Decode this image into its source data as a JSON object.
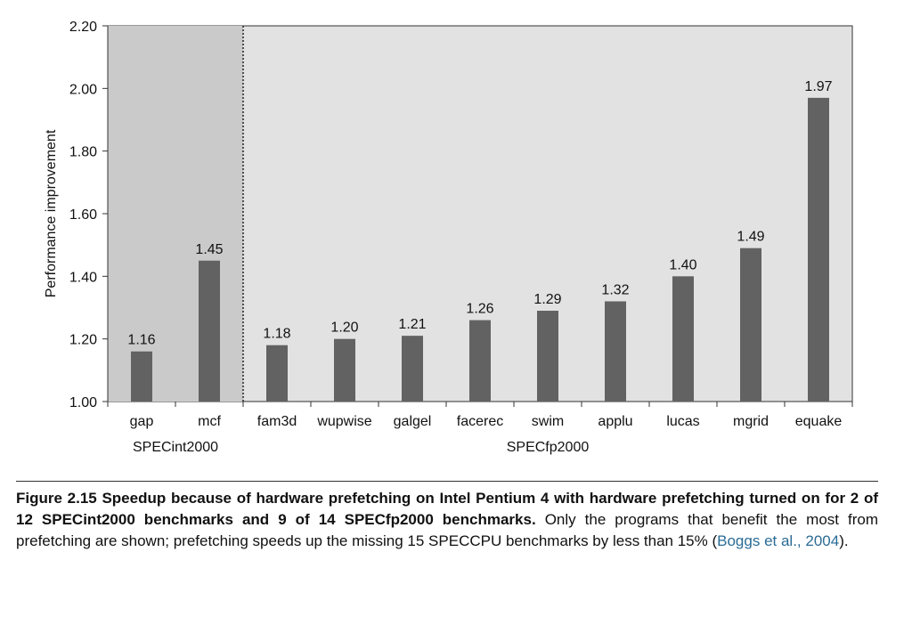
{
  "chart_data": {
    "type": "bar",
    "title": "",
    "xlabel": "",
    "ylabel": "Performance improvement",
    "ylim": [
      1.0,
      2.2
    ],
    "yticks": [
      "1.00",
      "1.20",
      "1.40",
      "1.60",
      "1.80",
      "2.00",
      "2.20"
    ],
    "grid": false,
    "categories": [
      "gap",
      "mcf",
      "fam3d",
      "wupwise",
      "galgel",
      "facerec",
      "swim",
      "applu",
      "lucas",
      "mgrid",
      "equake"
    ],
    "values": [
      1.16,
      1.45,
      1.18,
      1.2,
      1.21,
      1.26,
      1.29,
      1.32,
      1.4,
      1.49,
      1.97
    ],
    "value_labels": [
      "1.16",
      "1.45",
      "1.18",
      "1.20",
      "1.21",
      "1.26",
      "1.29",
      "1.32",
      "1.40",
      "1.49",
      "1.97"
    ],
    "groups": [
      {
        "label": "SPECint2000",
        "count": 2
      },
      {
        "label": "SPECfp2000",
        "count": 9
      }
    ],
    "colors": {
      "bar": "#626262",
      "plot_bg": "#e2e2e2",
      "int_region_bg": "#cacaca"
    }
  },
  "caption": {
    "lead": "Figure 2.15  Speedup because of hardware prefetching on Intel Pentium 4 with hardware prefetching turned on for 2 of 12 SPECint2000 benchmarks and 9 of 14 SPECfp2000 benchmarks.",
    "body": " Only the programs that benefit the most from prefetching are shown; prefetching speeds up the missing 15 SPECCPU benchmarks by less than 15% (",
    "ref": "Boggs et al., 2004",
    "tail": ")."
  }
}
